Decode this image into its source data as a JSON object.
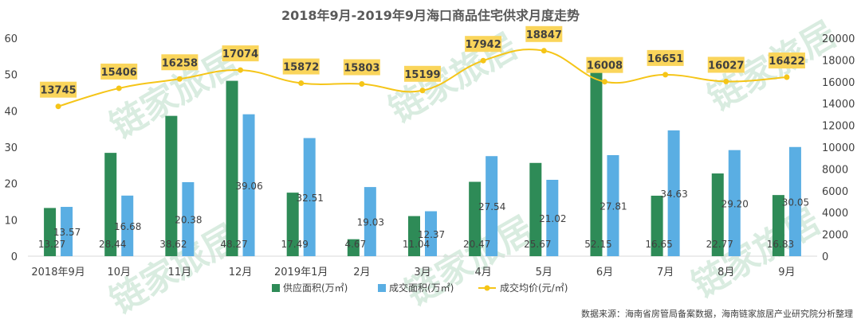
{
  "chart_data": {
    "type": "bar+line",
    "title": "2018年9月-2019年9月海口商品住宅供求月度走势",
    "categories": [
      "2018年9月",
      "10月",
      "11月",
      "12月",
      "2019年1月",
      "2月",
      "3月",
      "4月",
      "5月",
      "6月",
      "7月",
      "8月",
      "9月"
    ],
    "series": [
      {
        "name": "供应面积(万㎡)",
        "type": "bar",
        "axis": "left",
        "color": "#2e8b57",
        "values": [
          13.27,
          28.44,
          38.62,
          48.27,
          17.49,
          4.67,
          11.04,
          20.47,
          25.67,
          52.15,
          16.65,
          22.77,
          16.83
        ]
      },
      {
        "name": "成交面积(万㎡)",
        "type": "bar",
        "axis": "left",
        "color": "#5aaee3",
        "values": [
          13.57,
          16.68,
          20.38,
          39.06,
          32.51,
          19.03,
          12.37,
          27.54,
          21.02,
          27.81,
          34.63,
          29.2,
          30.05
        ]
      },
      {
        "name": "成交均价(元/㎡)",
        "type": "line",
        "axis": "right",
        "color": "#f5c518",
        "values": [
          13745,
          15406,
          16258,
          17074,
          15872,
          15803,
          15199,
          17942,
          18847,
          16008,
          16651,
          16027,
          16422
        ]
      }
    ],
    "y_left": {
      "min": 0,
      "max": 60,
      "step": 10
    },
    "y_right": {
      "min": 0,
      "max": 20000,
      "step": 2000
    },
    "legend_position": "bottom",
    "label_format": [
      "0.00",
      "0.00",
      "0"
    ]
  },
  "watermark": "链家旅居",
  "source": "数据来源：海南省房管局备案数据，海南链家旅居产业研究院分析整理"
}
